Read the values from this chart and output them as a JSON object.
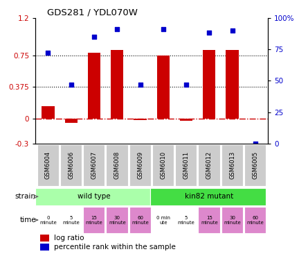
{
  "title": "GDS281 / YDL070W",
  "samples": [
    "GSM6004",
    "GSM6006",
    "GSM6007",
    "GSM6008",
    "GSM6009",
    "GSM6010",
    "GSM6011",
    "GSM6012",
    "GSM6013",
    "GSM6005"
  ],
  "log_ratio": [
    0.15,
    -0.05,
    0.78,
    0.82,
    -0.02,
    0.75,
    -0.03,
    0.82,
    0.82,
    0.0
  ],
  "percentile": [
    72,
    47,
    85,
    91,
    47,
    91,
    47,
    88,
    90,
    0
  ],
  "ylim_left": [
    -0.3,
    1.2
  ],
  "ylim_right": [
    0,
    100
  ],
  "yticks_left": [
    -0.3,
    0,
    0.375,
    0.75,
    1.2
  ],
  "yticks_right": [
    0,
    25,
    50,
    75,
    100
  ],
  "hlines_dotted": [
    0.75,
    0.375
  ],
  "hline_dashdot": 0.0,
  "bar_color": "#cc0000",
  "dot_color": "#0000cc",
  "strain_labels": [
    "wild type",
    "kin82 mutant"
  ],
  "strain_color_wt": "#aaffaa",
  "strain_color_mut": "#44dd44",
  "time_labels": [
    "0\nminute",
    "5\nminute",
    "15\nminute",
    "30\nminute",
    "60\nminute",
    "0 min\nute",
    "5\nminute",
    "15\nminute",
    "30\nminute",
    "60\nminute"
  ],
  "time_colors": [
    "#ffffff",
    "#ffffff",
    "#dd88cc",
    "#dd88cc",
    "#dd88cc",
    "#ffffff",
    "#ffffff",
    "#dd88cc",
    "#dd88cc",
    "#dd88cc"
  ],
  "label_bg": "#cccccc",
  "legend_bar_label": "log ratio",
  "legend_dot_label": "percentile rank within the sample"
}
